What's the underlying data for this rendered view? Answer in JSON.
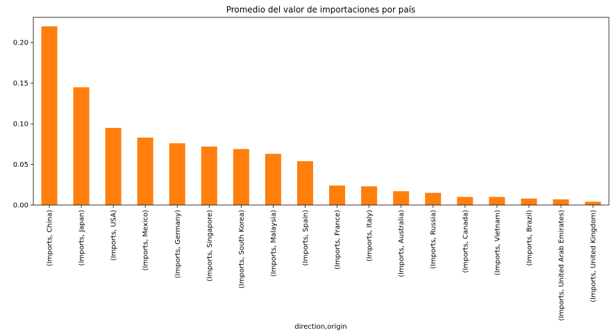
{
  "chart_data": {
    "type": "bar",
    "title": "Promedio del valor de importaciones por país",
    "xlabel": "direction,origin",
    "ylabel": "",
    "ylim": [
      0,
      0.231
    ],
    "yticks": [
      0.0,
      0.05,
      0.1,
      0.15,
      0.2
    ],
    "ytick_labels": [
      "0.00",
      "0.05",
      "0.10",
      "0.15",
      "0.20"
    ],
    "grid": false,
    "bar_color": "#ff7f0e",
    "categories": [
      "(Imports, China)",
      "(Imports, Japan)",
      "(Imports, USA)",
      "(Imports, Mexico)",
      "(Imports, Germany)",
      "(Imports, Singapore)",
      "(Imports, South Korea)",
      "(Imports, Malaysia)",
      "(Imports, Spain)",
      "(Imports, France)",
      "(Imports, Italy)",
      "(Imports, Australia)",
      "(Imports, Russia)",
      "(Imports, Canada)",
      "(Imports, Vietnam)",
      "(Imports, Brazil)",
      "(Imports, United Arab Emirates)",
      "(Imports, United Kingdom)"
    ],
    "values": [
      0.22,
      0.145,
      0.095,
      0.083,
      0.076,
      0.072,
      0.069,
      0.063,
      0.054,
      0.024,
      0.023,
      0.017,
      0.015,
      0.01,
      0.01,
      0.008,
      0.007,
      0.004
    ]
  }
}
